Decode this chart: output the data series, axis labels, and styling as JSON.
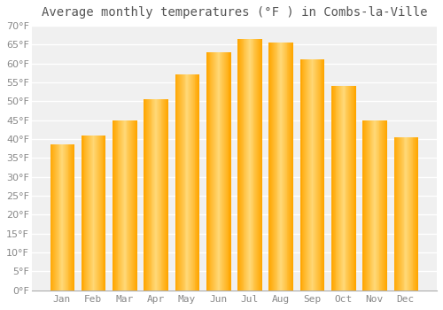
{
  "title": "Average monthly temperatures (°F ) in Combs-la-Ville",
  "months": [
    "Jan",
    "Feb",
    "Mar",
    "Apr",
    "May",
    "Jun",
    "Jul",
    "Aug",
    "Sep",
    "Oct",
    "Nov",
    "Dec"
  ],
  "values": [
    38.5,
    41.0,
    45.0,
    50.5,
    57.0,
    63.0,
    66.5,
    65.5,
    61.0,
    54.0,
    45.0,
    40.5
  ],
  "bar_color_center": "#FFD060",
  "bar_color_edge": "#FFA500",
  "ylim": [
    0,
    70
  ],
  "yticks": [
    0,
    5,
    10,
    15,
    20,
    25,
    30,
    35,
    40,
    45,
    50,
    55,
    60,
    65,
    70
  ],
  "background_color": "#FFFFFF",
  "plot_bg_color": "#F0F0F0",
  "grid_color": "#FFFFFF",
  "title_fontsize": 10,
  "tick_fontsize": 8,
  "tick_color": "#888888",
  "bar_width": 0.75
}
